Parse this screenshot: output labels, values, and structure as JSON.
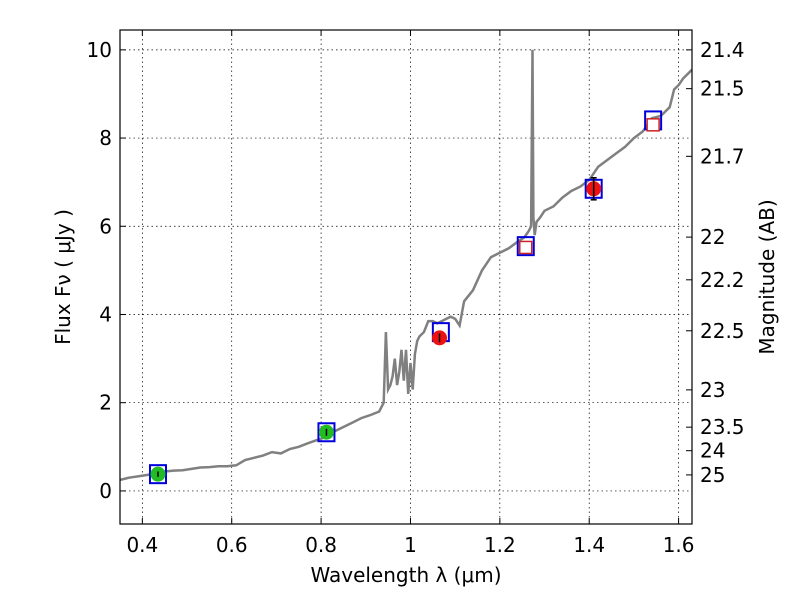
{
  "chart_data": {
    "type": "scatter",
    "xlabel": "Wavelength  λ (μm)",
    "ylabel": "Flux  Fν  ( μJy )",
    "ylabel_right": "Magnitude (AB)",
    "xlim": [
      0.35,
      1.63
    ],
    "ylim": [
      -0.75,
      10.45
    ],
    "x_ticks": [
      0.4,
      0.6,
      0.8,
      1,
      1.2,
      1.4,
      1.6
    ],
    "x_tick_labels": [
      "0.4",
      "0.6",
      "0.8",
      "1",
      "1.2",
      "1.4",
      "1.6"
    ],
    "y_ticks": [
      0,
      2,
      4,
      6,
      8,
      10
    ],
    "y_tick_labels": [
      "0",
      "2",
      "4",
      "6",
      "8",
      "10"
    ],
    "right_ticks": [
      21.4,
      21.5,
      21.7,
      22,
      22.2,
      22.5,
      23,
      23.5,
      24,
      25
    ],
    "right_tick_labels": [
      "21.4",
      "21.5",
      "21.7",
      "22",
      "22.2",
      "22.5",
      "23",
      "23.5",
      "24",
      "25"
    ],
    "grid": true,
    "model_spectrum": {
      "color": "#808080",
      "x": [
        0.35,
        0.37,
        0.39,
        0.41,
        0.43,
        0.45,
        0.47,
        0.49,
        0.51,
        0.53,
        0.55,
        0.57,
        0.59,
        0.61,
        0.63,
        0.65,
        0.67,
        0.69,
        0.71,
        0.73,
        0.75,
        0.77,
        0.79,
        0.81,
        0.83,
        0.85,
        0.87,
        0.89,
        0.91,
        0.93,
        0.94,
        0.945,
        0.95,
        0.955,
        0.96,
        0.965,
        0.97,
        0.975,
        0.98,
        0.985,
        0.99,
        0.995,
        1.0,
        1.005,
        1.01,
        1.015,
        1.02,
        1.03,
        1.04,
        1.05,
        1.06,
        1.07,
        1.08,
        1.09,
        1.1,
        1.11,
        1.12,
        1.14,
        1.16,
        1.18,
        1.2,
        1.22,
        1.24,
        1.255,
        1.265,
        1.27,
        1.273,
        1.275,
        1.278,
        1.282,
        1.29,
        1.3,
        1.32,
        1.34,
        1.36,
        1.38,
        1.4,
        1.42,
        1.44,
        1.46,
        1.48,
        1.5,
        1.52,
        1.54,
        1.56,
        1.58,
        1.59,
        1.6,
        1.61,
        1.63
      ],
      "y": [
        0.25,
        0.3,
        0.33,
        0.36,
        0.4,
        0.44,
        0.46,
        0.47,
        0.5,
        0.53,
        0.54,
        0.56,
        0.56,
        0.58,
        0.7,
        0.75,
        0.8,
        0.88,
        0.85,
        0.95,
        1.0,
        1.08,
        1.15,
        1.22,
        1.35,
        1.45,
        1.55,
        1.65,
        1.72,
        1.8,
        2.0,
        3.6,
        2.3,
        2.4,
        2.6,
        3.0,
        2.4,
        2.7,
        3.2,
        2.5,
        3.2,
        2.2,
        2.9,
        2.3,
        3.1,
        3.4,
        3.5,
        3.6,
        3.85,
        3.85,
        3.8,
        3.85,
        3.9,
        3.95,
        3.9,
        3.75,
        4.3,
        4.55,
        5.0,
        5.3,
        5.4,
        5.5,
        5.65,
        5.75,
        5.9,
        6.0,
        10.0,
        6.2,
        5.8,
        6.1,
        6.2,
        6.35,
        6.45,
        6.65,
        6.8,
        6.9,
        7.05,
        7.35,
        7.5,
        7.65,
        7.8,
        8.0,
        8.15,
        8.45,
        8.5,
        8.7,
        9.1,
        9.2,
        9.35,
        9.55
      ]
    },
    "photometry": [
      {
        "x": 0.435,
        "y": 0.38,
        "err": 0.06,
        "color": "#22bb22"
      },
      {
        "x": 0.812,
        "y": 1.33,
        "err": 0.08,
        "color": "#22bb22"
      },
      {
        "x": 1.065,
        "y": 3.47,
        "err": 0.1,
        "color": "#ee1111"
      },
      {
        "x": 1.41,
        "y": 6.85,
        "err": 0.25,
        "color": "#ee1111"
      },
      {
        "x": 1.258,
        "y": 5.52,
        "err": 0.0,
        "color": "#ffffff"
      },
      {
        "x": 1.543,
        "y": 8.3,
        "err": 0.0,
        "color": "#ffffff"
      }
    ],
    "model_points": [
      {
        "x": 0.435,
        "y": 0.38
      },
      {
        "x": 0.812,
        "y": 1.33
      },
      {
        "x": 1.068,
        "y": 3.6
      },
      {
        "x": 1.41,
        "y": 6.85
      },
      {
        "x": 1.258,
        "y": 5.55
      },
      {
        "x": 1.543,
        "y": 8.4
      }
    ],
    "colors": {
      "model_box_edge": "#0000dd",
      "open_marker_edge": "#cc2222",
      "error_bar": "#000000"
    }
  }
}
